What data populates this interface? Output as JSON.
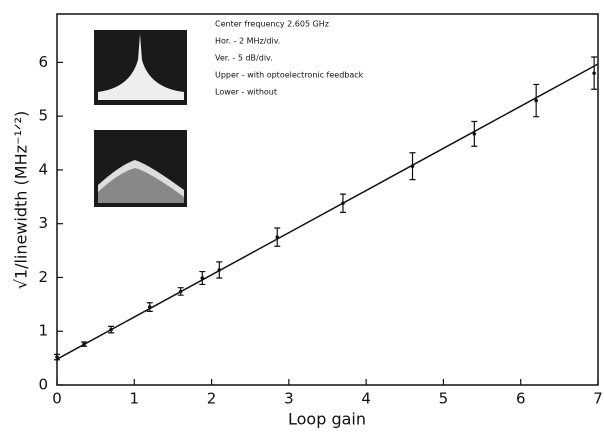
{
  "chart_data": {
    "type": "scatter",
    "x_label": "Loop gain",
    "y_label": "√1/linewidth  (MHz⁻¹ᐟ²)",
    "x": [
      0,
      0.35,
      0.7,
      1.2,
      1.6,
      1.88,
      2.1,
      2.85,
      3.7,
      4.6,
      5.4,
      6.2,
      6.95
    ],
    "values": [
      0.52,
      0.76,
      1.03,
      1.45,
      1.74,
      1.99,
      2.14,
      2.75,
      3.38,
      4.07,
      4.67,
      5.29,
      5.8
    ],
    "errors": [
      0.05,
      0.04,
      0.06,
      0.08,
      0.07,
      0.12,
      0.15,
      0.17,
      0.17,
      0.25,
      0.23,
      0.3,
      0.3
    ],
    "color": "#111111",
    "fit_line": {
      "x": [
        0,
        7
      ],
      "values": [
        0.48,
        5.97
      ]
    },
    "xlim": [
      0,
      7
    ],
    "ylim": [
      0,
      6.9
    ],
    "xticks": [
      0,
      1,
      2,
      3,
      4,
      5,
      6,
      7
    ],
    "yticks": [
      0,
      1,
      2,
      3,
      4,
      5,
      6
    ],
    "annotations": [
      "Center frequency   2.605 GHz",
      "Hor.  -  2 MHz/div.",
      "Ver.  -  5 dB/div.",
      "Upper - with optoelectronic feedback",
      "Lower - without"
    ]
  }
}
